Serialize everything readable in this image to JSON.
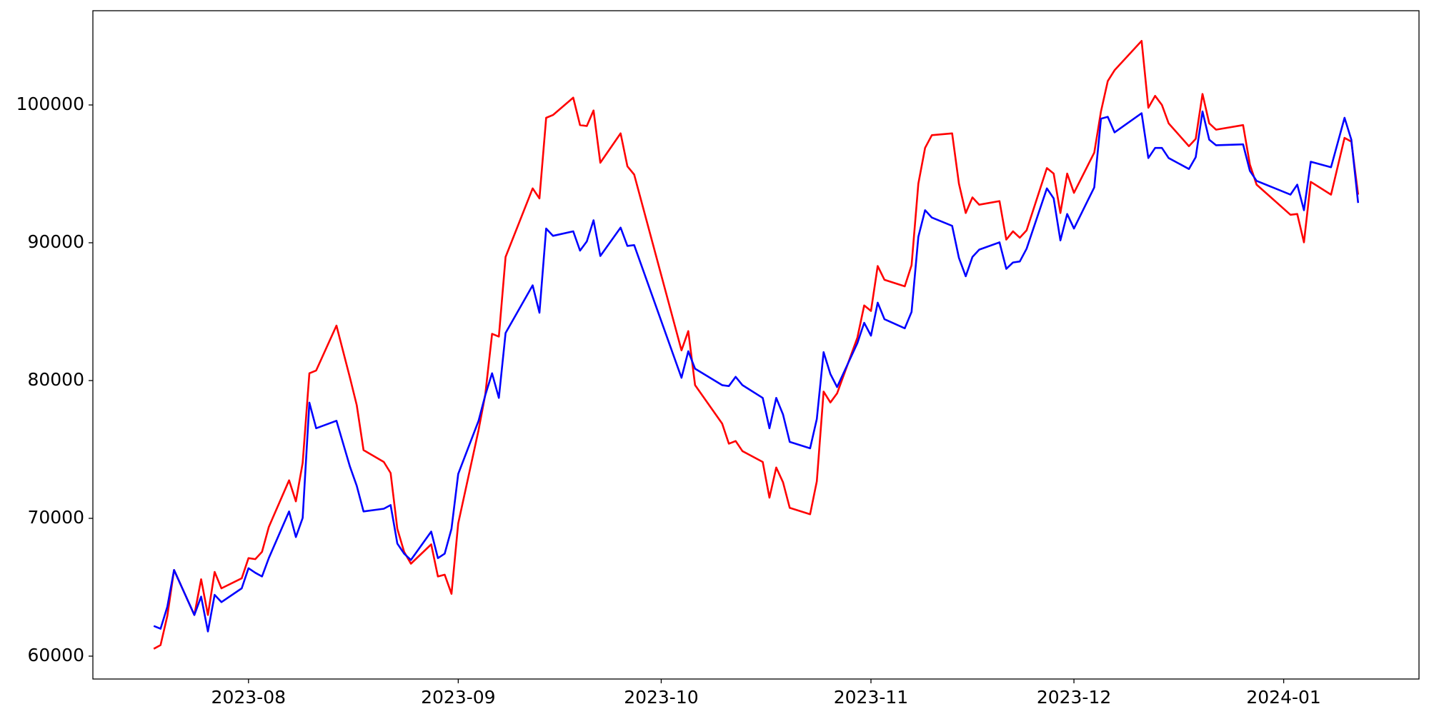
{
  "chart_data": {
    "type": "line",
    "x": [
      "2023-07-18",
      "2023-07-19",
      "2023-07-20",
      "2023-07-21",
      "2023-07-24",
      "2023-07-25",
      "2023-07-26",
      "2023-07-27",
      "2023-07-28",
      "2023-07-31",
      "2023-08-01",
      "2023-08-02",
      "2023-08-03",
      "2023-08-04",
      "2023-08-07",
      "2023-08-08",
      "2023-08-09",
      "2023-08-10",
      "2023-08-11",
      "2023-08-14",
      "2023-08-16",
      "2023-08-17",
      "2023-08-18",
      "2023-08-21",
      "2023-08-22",
      "2023-08-23",
      "2023-08-24",
      "2023-08-25",
      "2023-08-28",
      "2023-08-29",
      "2023-08-30",
      "2023-08-31",
      "2023-09-01",
      "2023-09-04",
      "2023-09-05",
      "2023-09-06",
      "2023-09-07",
      "2023-09-08",
      "2023-09-12",
      "2023-09-13",
      "2023-09-14",
      "2023-09-15",
      "2023-09-18",
      "2023-09-19",
      "2023-09-20",
      "2023-09-21",
      "2023-09-22",
      "2023-09-25",
      "2023-09-26",
      "2023-09-27",
      "2023-10-04",
      "2023-10-05",
      "2023-10-06",
      "2023-10-10",
      "2023-10-11",
      "2023-10-12",
      "2023-10-13",
      "2023-10-16",
      "2023-10-17",
      "2023-10-18",
      "2023-10-19",
      "2023-10-20",
      "2023-10-23",
      "2023-10-24",
      "2023-10-25",
      "2023-10-26",
      "2023-10-27",
      "2023-10-30",
      "2023-10-31",
      "2023-11-01",
      "2023-11-02",
      "2023-11-03",
      "2023-11-06",
      "2023-11-07",
      "2023-11-08",
      "2023-11-09",
      "2023-11-10",
      "2023-11-13",
      "2023-11-14",
      "2023-11-15",
      "2023-11-16",
      "2023-11-17",
      "2023-11-20",
      "2023-11-21",
      "2023-11-22",
      "2023-11-23",
      "2023-11-24",
      "2023-11-27",
      "2023-11-28",
      "2023-11-29",
      "2023-11-30",
      "2023-12-01",
      "2023-12-04",
      "2023-12-05",
      "2023-12-06",
      "2023-12-07",
      "2023-12-11",
      "2023-12-12",
      "2023-12-13",
      "2023-12-14",
      "2023-12-15",
      "2023-12-18",
      "2023-12-19",
      "2023-12-20",
      "2023-12-21",
      "2023-12-22",
      "2023-12-26",
      "2023-12-27",
      "2023-12-28",
      "2024-01-02",
      "2024-01-03",
      "2024-01-04",
      "2024-01-05",
      "2024-01-08",
      "2024-01-10",
      "2024-01-11",
      "2024-01-12"
    ],
    "series": [
      {
        "color": "#ff0000",
        "values": [
          60530,
          60800,
          62920,
          66250,
          62990,
          65580,
          62990,
          66110,
          64920,
          65650,
          67110,
          67040,
          67570,
          69370,
          72760,
          71230,
          74020,
          80530,
          80730,
          83990,
          80200,
          78210,
          74950,
          74090,
          73290,
          69240,
          67570,
          66710,
          68110,
          65780,
          65910,
          64520,
          69630,
          76410,
          78990,
          83390,
          83190,
          88970,
          93950,
          93220,
          99070,
          99270,
          100530,
          98540,
          98470,
          99600,
          95810,
          97940,
          95550,
          94950,
          82190,
          83590,
          79670,
          76880,
          75420,
          75610,
          74880,
          74090,
          71500,
          73690,
          72620,
          70760,
          70300,
          72690,
          79200,
          78410,
          79070,
          83120,
          85450,
          85050,
          88310,
          87310,
          86840,
          88370,
          94290,
          96880,
          97810,
          97940,
          94290,
          92160,
          93290,
          92760,
          93020,
          90230,
          90830,
          90370,
          90900,
          95420,
          95020,
          92160,
          95020,
          93620,
          96540,
          99530,
          101730,
          102520,
          104650,
          99800,
          100660,
          100000,
          98670,
          97010,
          97540,
          100800,
          98670,
          98210,
          98540,
          95680,
          94220,
          92030,
          92090,
          90030,
          94420,
          93490,
          97610,
          97340,
          93490
        ]
      },
      {
        "color": "#0000ff",
        "values": [
          62190,
          61990,
          63590,
          66250,
          62990,
          64320,
          61790,
          64450,
          63920,
          64920,
          66380,
          66050,
          65780,
          67110,
          70500,
          68640,
          70030,
          78400,
          76540,
          77080,
          73750,
          72360,
          70500,
          70700,
          70960,
          68170,
          67440,
          66980,
          69040,
          67110,
          67440,
          69240,
          73220,
          77080,
          78940,
          80530,
          78740,
          83450,
          86910,
          84920,
          91030,
          90500,
          90830,
          89430,
          90100,
          91630,
          89040,
          91100,
          89770,
          89830,
          80200,
          82130,
          80860,
          79670,
          79600,
          80270,
          79670,
          78740,
          76540,
          78740,
          77540,
          75550,
          75080,
          77210,
          82060,
          80470,
          79530,
          82720,
          84190,
          83260,
          85650,
          84450,
          83790,
          84980,
          90430,
          92360,
          91830,
          91230,
          88900,
          87570,
          88970,
          89500,
          90030,
          88110,
          88570,
          88640,
          89570,
          93950,
          93220,
          90170,
          92090,
          91030,
          94020,
          99000,
          99140,
          98010,
          99400,
          96150,
          96880,
          96880,
          96150,
          95350,
          96210,
          99530,
          97480,
          97080,
          97140,
          95220,
          94490,
          93490,
          94220,
          92360,
          95880,
          95480,
          99070,
          97480,
          92890
        ]
      }
    ],
    "xlim": [
      "2023-07-09",
      "2024-01-21"
    ],
    "xticks": [
      {
        "value": "2023-08-01",
        "label": "2023-08"
      },
      {
        "value": "2023-09-01",
        "label": "2023-09"
      },
      {
        "value": "2023-10-01",
        "label": "2023-10"
      },
      {
        "value": "2023-11-01",
        "label": "2023-11"
      },
      {
        "value": "2023-12-01",
        "label": "2023-12"
      },
      {
        "value": "2024-01-01",
        "label": "2024-01"
      }
    ],
    "ylim": [
      58340,
      106840
    ],
    "yticks": [
      60000,
      70000,
      80000,
      90000,
      100000
    ]
  }
}
